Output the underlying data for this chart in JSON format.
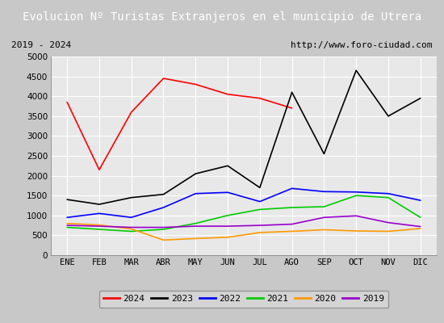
{
  "title": "Evolucion Nº Turistas Extranjeros en el municipio de Utrera",
  "subtitle_left": "2019 - 2024",
  "subtitle_right": "http://www.foro-ciudad.com",
  "months": [
    "ENE",
    "FEB",
    "MAR",
    "ABR",
    "MAY",
    "JUN",
    "JUL",
    "AGO",
    "SEP",
    "OCT",
    "NOV",
    "DIC"
  ],
  "series": {
    "2024": {
      "color": "#ff0000",
      "data": [
        3850,
        2150,
        3600,
        4450,
        4300,
        4050,
        3950,
        3700,
        null,
        null,
        null,
        null
      ]
    },
    "2023": {
      "color": "#000000",
      "data": [
        1400,
        1280,
        1450,
        1530,
        2050,
        2250,
        1700,
        4100,
        2550,
        4650,
        3500,
        3950
      ]
    },
    "2022": {
      "color": "#0000ff",
      "data": [
        950,
        1050,
        950,
        1200,
        1550,
        1580,
        1350,
        1680,
        1600,
        1590,
        1550,
        1380
      ]
    },
    "2021": {
      "color": "#00cc00",
      "data": [
        700,
        650,
        600,
        650,
        800,
        1000,
        1150,
        1200,
        1220,
        1500,
        1450,
        950
      ]
    },
    "2020": {
      "color": "#ff9900",
      "data": [
        800,
        760,
        660,
        380,
        420,
        450,
        570,
        600,
        640,
        610,
        600,
        670
      ]
    },
    "2019": {
      "color": "#9900cc",
      "data": [
        750,
        730,
        700,
        700,
        730,
        730,
        750,
        780,
        950,
        990,
        820,
        720
      ]
    }
  },
  "ylim": [
    0,
    5000
  ],
  "yticks": [
    0,
    500,
    1000,
    1500,
    2000,
    2500,
    3000,
    3500,
    4000,
    4500,
    5000
  ],
  "title_bg_color": "#4472c4",
  "title_font_color": "#ffffff",
  "plot_bg_color": "#e8e8e8",
  "outer_bg_color": "#c8c8c8",
  "grid_color": "#ffffff",
  "legend_years": [
    "2024",
    "2023",
    "2022",
    "2021",
    "2020",
    "2019"
  ]
}
